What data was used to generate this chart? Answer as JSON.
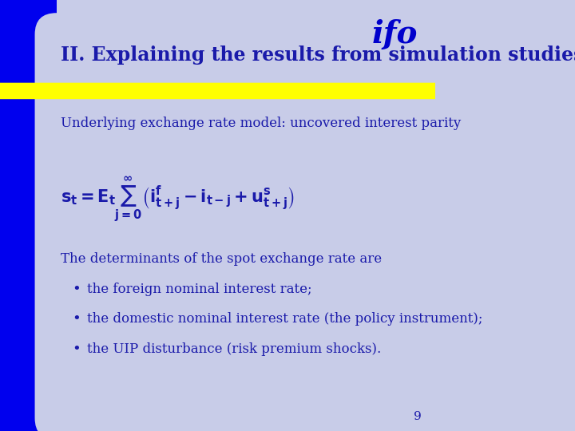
{
  "title": "II. Explaining the results from simulation studies",
  "title_color": "#1a1aaa",
  "bg_color": "#c8cce8",
  "left_panel_color": "#0000ee",
  "top_left_rect_color": "#0000ee",
  "yellow_line_color": "#ffff00",
  "ifo_color": "#0000cc",
  "subtitle": "Underlying exchange rate model: uncovered interest parity",
  "subtitle_color": "#1a1aaa",
  "body_color": "#1a1aaa",
  "line1": "The determinants of the spot exchange rate are",
  "bullets": [
    "the foreign nominal interest rate;",
    "the domestic nominal interest rate (the policy instrument);",
    "the UIP disturbance (risk premium shocks)."
  ],
  "page_number": "9",
  "content_bg": "#c8cce8",
  "formula_color": "#1a1aaa"
}
